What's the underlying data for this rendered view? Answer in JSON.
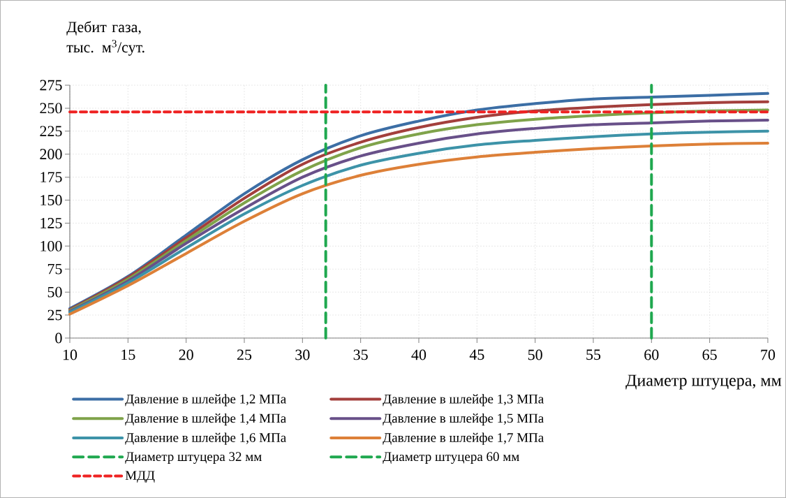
{
  "chart_data": {
    "type": "line",
    "xlabel": "Диаметр штуцера, мм",
    "ylabel": "Дебит газа, тыс. м$^{3}$/сут.",
    "x": [
      10,
      15,
      20,
      25,
      30,
      35,
      40,
      45,
      50,
      55,
      60,
      65,
      70
    ],
    "xlim": [
      10,
      70
    ],
    "ylim": [
      0,
      275
    ],
    "xticks": [
      10,
      15,
      20,
      25,
      30,
      35,
      40,
      45,
      50,
      55,
      60,
      65,
      70
    ],
    "yticks": [
      0,
      25,
      50,
      75,
      100,
      125,
      150,
      175,
      200,
      225,
      250,
      275
    ],
    "grid": true,
    "legend": "bottom",
    "line_style": "solid",
    "series": [
      {
        "name": "Давление в шлейфе 1,2 МПа",
        "color": "#3c6ea5",
        "values": [
          32,
          67,
          112,
          157,
          194,
          220,
          236,
          248,
          255,
          260,
          262,
          264,
          266
        ]
      },
      {
        "name": "Давление в шлейфе 1,3 МПа",
        "color": "#a33f3c",
        "values": [
          31,
          66,
          109,
          152,
          189,
          213,
          229,
          240,
          247,
          251,
          254,
          256,
          257
        ]
      },
      {
        "name": "Давление в шлейфе 1,4 МПа",
        "color": "#7fa34a",
        "values": [
          30,
          64,
          106,
          147,
          182,
          207,
          222,
          232,
          238,
          242,
          245,
          247,
          248
        ]
      },
      {
        "name": "Давление в шлейфе 1,5 МПа",
        "color": "#685089",
        "values": [
          29,
          62,
          103,
          141,
          175,
          198,
          212,
          222,
          228,
          232,
          234,
          236,
          237
        ]
      },
      {
        "name": "Давление в шлейфе 1,6 МПа",
        "color": "#3d93a8",
        "values": [
          28,
          60,
          98,
          135,
          166,
          188,
          201,
          210,
          215,
          219,
          222,
          224,
          225
        ]
      },
      {
        "name": "Давление в шлейфе 1,7 МПа",
        "color": "#dd8038",
        "values": [
          26,
          57,
          92,
          127,
          157,
          177,
          189,
          197,
          202,
          206,
          209,
          211,
          212
        ]
      },
      {
        "name": "Диаметр штуцера 32 мм",
        "color": "#1fa84f",
        "line_style": "dashed",
        "x": [
          32,
          32
        ],
        "values": [
          0,
          275
        ]
      },
      {
        "name": "Диаметр штуцера 60 мм",
        "color": "#1fa84f",
        "line_style": "dashed",
        "x": [
          60,
          60
        ],
        "values": [
          0,
          275
        ]
      },
      {
        "name": "МДД",
        "color": "#ee2222",
        "line_style": "dotted",
        "x": [
          10,
          70
        ],
        "values": [
          246,
          246
        ]
      }
    ]
  }
}
